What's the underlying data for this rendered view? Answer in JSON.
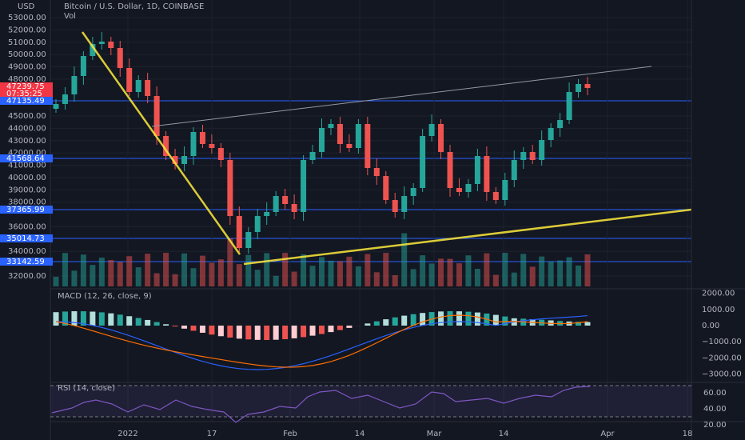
{
  "header": {
    "currency": "USD",
    "symbol": "Bitcoin / U.S. Dollar, 1D, COINBASE",
    "volume_label": "Vol"
  },
  "price_axis": {
    "ticks": [
      "53000.00",
      "52000.00",
      "51000.00",
      "50000.00",
      "49000.00",
      "48000.00",
      "45000.00",
      "44000.00",
      "43000.00",
      "42000.00",
      "41000.00",
      "40000.00",
      "39000.00",
      "38000.00",
      "36000.00",
      "34000.00",
      "32000.00"
    ]
  },
  "price_tags": [
    {
      "label": "47239.75",
      "kind": "last"
    },
    {
      "label": "07:35:25",
      "kind": "countdown"
    },
    {
      "label": "47135.49",
      "kind": "line"
    },
    {
      "label": "41568.64",
      "kind": "line"
    },
    {
      "label": "37365.99",
      "kind": "line"
    },
    {
      "label": "35014.73",
      "kind": "line"
    },
    {
      "label": "33142.59",
      "kind": "line"
    }
  ],
  "macd": {
    "title": "MACD (12, 26, close, 9)",
    "ticks": [
      "2000.00",
      "1000.00",
      "0.00",
      "−1000.00",
      "−2000.00",
      "−3000.00"
    ]
  },
  "rsi": {
    "title": "RSI (14, close)",
    "ticks": [
      "60.00",
      "40.00",
      "20.00"
    ]
  },
  "time_axis": {
    "labels": [
      "2022",
      "17",
      "Feb",
      "14",
      "Mar",
      "14",
      "Apr",
      "18"
    ]
  }
}
